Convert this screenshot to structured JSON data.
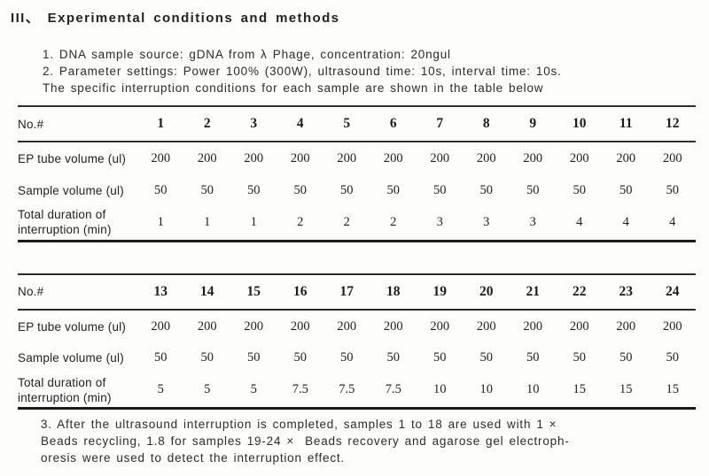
{
  "title": "III、 Experimental conditions and methods",
  "intro": {
    "lines": [
      "1. DNA sample source: gDNA from λ Phage, concentration: 20ngul",
      "2. Parameter settings: Power 100% (300W), ultrasound time: 10s, interval time: 10s.",
      "The specific interruption conditions for each sample are shown in the table below"
    ]
  },
  "tables": [
    {
      "corner_label": "No.#",
      "column_headers": [
        "1",
        "2",
        "3",
        "4",
        "5",
        "6",
        "7",
        "8",
        "9",
        "10",
        "11",
        "12"
      ],
      "rows": [
        {
          "label": "EP tube volume (ul)",
          "values": [
            "200",
            "200",
            "200",
            "200",
            "200",
            "200",
            "200",
            "200",
            "200",
            "200",
            "200",
            "200"
          ]
        },
        {
          "label": "Sample volume (ul)",
          "values": [
            "50",
            "50",
            "50",
            "50",
            "50",
            "50",
            "50",
            "50",
            "50",
            "50",
            "50",
            "50"
          ]
        },
        {
          "label": "Total duration of interruption (min)",
          "values": [
            "1",
            "1",
            "1",
            "2",
            "2",
            "2",
            "3",
            "3",
            "3",
            "4",
            "4",
            "4"
          ]
        }
      ]
    },
    {
      "corner_label": "No.#",
      "column_headers": [
        "13",
        "14",
        "15",
        "16",
        "17",
        "18",
        "19",
        "20",
        "21",
        "22",
        "23",
        "24"
      ],
      "rows": [
        {
          "label": "EP tube volume (ul)",
          "values": [
            "200",
            "200",
            "200",
            "200",
            "200",
            "200",
            "200",
            "200",
            "200",
            "200",
            "200",
            "200"
          ]
        },
        {
          "label": "Sample volume (ul)",
          "values": [
            "50",
            "50",
            "50",
            "50",
            "50",
            "50",
            "50",
            "50",
            "50",
            "50",
            "50",
            "50"
          ]
        },
        {
          "label": "Total duration of interruption (min)",
          "values": [
            "5",
            "5",
            "5",
            "7.5",
            "7.5",
            "7.5",
            "10",
            "10",
            "10",
            "15",
            "15",
            "15"
          ]
        }
      ]
    }
  ],
  "footer": {
    "lines": [
      "3. After the ultrasound interruption is completed, samples 1 to 18 are used with 1 ×",
      "Beads recycling, 1.8 for samples 19-24 ×  Beads recovery and agarose gel electroph-",
      "oresis were used to detect the interruption effect."
    ]
  }
}
